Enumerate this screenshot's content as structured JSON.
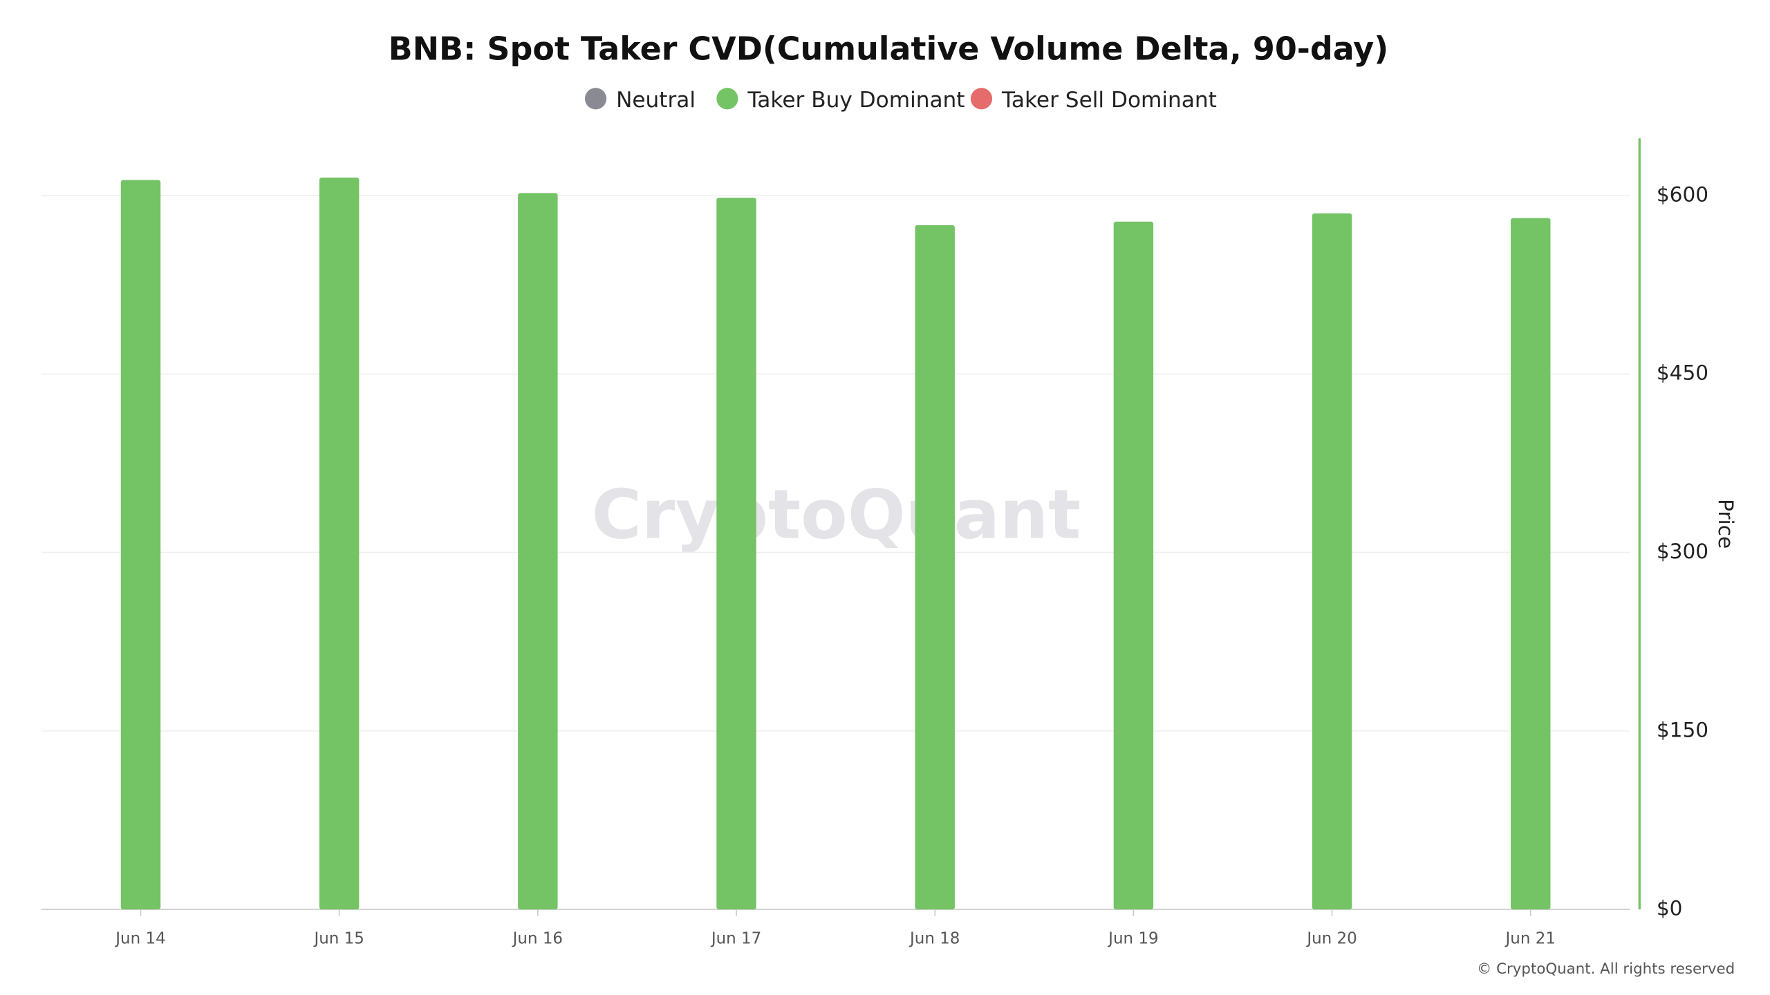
{
  "chart_data": {
    "type": "bar",
    "title": "BNB: Spot Taker CVD(Cumulative Volume Delta, 90-day)",
    "categories": [
      "Jun 14",
      "Jun 15",
      "Jun 16",
      "Jun 17",
      "Jun 18",
      "Jun 19",
      "Jun 20",
      "Jun 21"
    ],
    "series": [
      {
        "name": "Neutral",
        "color": "#8a8a93",
        "values": [
          null,
          null,
          null,
          null,
          null,
          null,
          null,
          null
        ]
      },
      {
        "name": "Taker Buy Dominant",
        "color": "#74c365",
        "values": [
          613,
          615,
          602,
          598,
          575,
          578,
          585,
          581
        ]
      },
      {
        "name": "Taker Sell Dominant",
        "color": "#e66b6b",
        "values": [
          null,
          null,
          null,
          null,
          null,
          null,
          null,
          null
        ]
      }
    ],
    "y_axis_label": "Price",
    "ylim": [
      0,
      648
    ],
    "yticks": [
      {
        "value": 0,
        "label": "$0"
      },
      {
        "value": 150,
        "label": "$150"
      },
      {
        "value": 300,
        "label": "$300"
      },
      {
        "value": 450,
        "label": "$450"
      },
      {
        "value": 600,
        "label": "$600"
      }
    ],
    "axis_color": "#74c365",
    "grid": true,
    "watermark": "CryptoQuant",
    "footer": "© CryptoQuant. All rights reserved"
  }
}
